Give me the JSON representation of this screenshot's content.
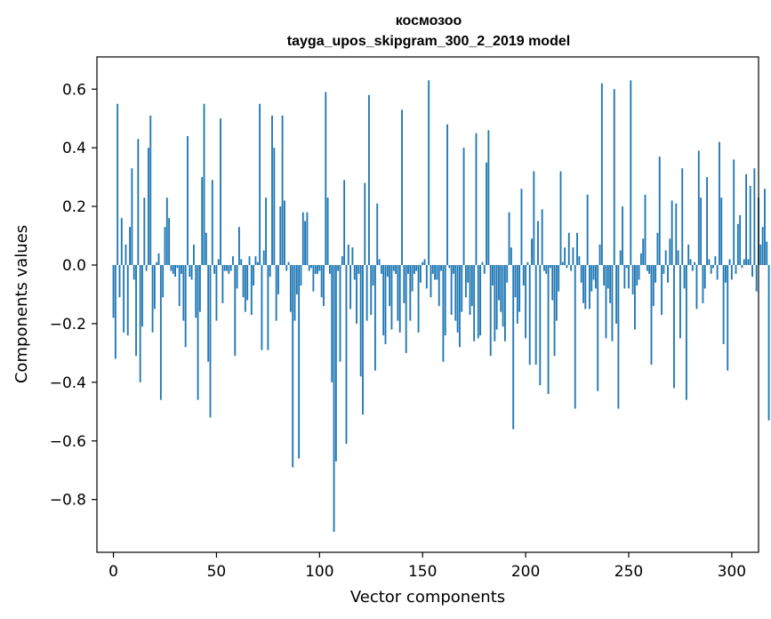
{
  "chart_data": {
    "type": "bar",
    "title": "космозоо",
    "subtitle": "tayga_upos_skipgram_300_2_2019 model",
    "xlabel": "Vector components",
    "ylabel": "Components values",
    "xlim": [
      -8,
      313
    ],
    "ylim": [
      -0.98,
      0.71
    ],
    "xticks": [
      0,
      50,
      100,
      150,
      200,
      250,
      300
    ],
    "xtick_labels": [
      "0",
      "50",
      "100",
      "150",
      "200",
      "250",
      "300"
    ],
    "yticks": [
      -0.8,
      -0.6,
      -0.4,
      -0.2,
      0.0,
      0.2,
      0.4,
      0.6
    ],
    "ytick_labels": [
      "−0.8",
      "−0.6",
      "−0.4",
      "−0.2",
      "0.0",
      "0.2",
      "0.4",
      "0.6"
    ],
    "bar_color": "#1f77b4",
    "values": [
      -0.18,
      -0.32,
      0.55,
      -0.11,
      0.16,
      -0.23,
      0.07,
      -0.24,
      0.13,
      0.33,
      -0.05,
      -0.31,
      0.43,
      -0.4,
      -0.21,
      0.23,
      -0.02,
      0.4,
      0.51,
      -0.23,
      -0.15,
      0.01,
      0.04,
      -0.46,
      -0.11,
      0.13,
      0.23,
      0.16,
      -0.02,
      -0.03,
      -0.04,
      -0.01,
      -0.14,
      -0.03,
      -0.19,
      -0.28,
      0.44,
      -0.04,
      -0.05,
      0.07,
      -0.18,
      -0.46,
      -0.16,
      0.3,
      0.55,
      0.11,
      -0.33,
      -0.52,
      0.29,
      -0.03,
      -0.19,
      0.02,
      0.5,
      -0.13,
      -0.02,
      -0.02,
      -0.03,
      -0.02,
      0.03,
      -0.31,
      -0.08,
      0.13,
      0.02,
      -0.11,
      -0.16,
      -0.12,
      0.03,
      -0.17,
      -0.07,
      0.03,
      0.01,
      0.55,
      -0.29,
      0.05,
      0.23,
      -0.29,
      -0.04,
      0.51,
      0.4,
      -0.19,
      -0.1,
      0.2,
      0.51,
      0.22,
      -0.02,
      0.01,
      -0.16,
      -0.69,
      -0.19,
      -0.1,
      -0.66,
      -0.07,
      0.18,
      0.15,
      0.18,
      -0.02,
      -0.01,
      -0.09,
      -0.03,
      -0.03,
      -0.02,
      -0.11,
      -0.14,
      0.59,
      0.23,
      -0.03,
      -0.4,
      -0.91,
      -0.67,
      -0.02,
      -0.33,
      0.03,
      0.29,
      -0.61,
      0.07,
      -0.15,
      0.06,
      -0.05,
      -0.2,
      -0.03,
      -0.38,
      -0.51,
      0.28,
      -0.19,
      0.58,
      -0.17,
      -0.07,
      -0.36,
      0.21,
      0.02,
      -0.03,
      -0.24,
      -0.27,
      -0.04,
      -0.14,
      -0.22,
      -0.02,
      -0.03,
      -0.19,
      -0.23,
      0.53,
      -0.13,
      -0.3,
      -0.03,
      -0.19,
      -0.09,
      -0.03,
      -0.02,
      -0.23,
      -0.06,
      0.01,
      0.02,
      -0.08,
      0.63,
      -0.11,
      -0.03,
      -0.05,
      -0.05,
      -0.14,
      -0.02,
      -0.33,
      -0.24,
      0.48,
      -0.01,
      -0.17,
      -0.03,
      -0.19,
      -0.23,
      -0.28,
      -0.16,
      0.4,
      -0.11,
      -0.06,
      -0.17,
      -0.14,
      -0.26,
      0.45,
      -0.25,
      -0.24,
      0.01,
      -0.03,
      0.35,
      0.46,
      -0.31,
      -0.07,
      -0.26,
      -0.22,
      -0.12,
      -0.16,
      -0.21,
      -0.26,
      -0.06,
      0.18,
      0.06,
      -0.56,
      -0.11,
      -0.2,
      -0.16,
      0.26,
      -0.07,
      -0.25,
      0.01,
      -0.34,
      0.09,
      0.32,
      -0.34,
      0.15,
      -0.41,
      0.19,
      -0.02,
      -0.03,
      -0.44,
      -0.01,
      -0.12,
      -0.31,
      -0.19,
      -0.09,
      0.32,
      0.01,
      0.06,
      -0.01,
      0.11,
      -0.02,
      0.06,
      -0.49,
      0.11,
      0.03,
      -0.06,
      -0.13,
      -0.15,
      0.24,
      -0.15,
      -0.09,
      -0.05,
      -0.08,
      -0.43,
      0.07,
      0.62,
      -0.07,
      -0.25,
      -0.08,
      -0.13,
      -0.26,
      0.6,
      -0.2,
      -0.49,
      0.05,
      0.2,
      -0.08,
      -0.01,
      -0.08,
      0.63,
      -0.1,
      -0.22,
      -0.07,
      -0.05,
      0.04,
      0.09,
      0.24,
      -0.02,
      -0.03,
      -0.34,
      -0.14,
      -0.06,
      0.11,
      0.37,
      -0.17,
      -0.03,
      0.05,
      -0.06,
      0.09,
      0.22,
      -0.42,
      0.21,
      0.05,
      -0.25,
      0.33,
      -0.08,
      -0.46,
      0.07,
      0.02,
      -0.02,
      0.01,
      -0.15,
      0.39,
      0.23,
      -0.13,
      -0.08,
      0.3,
      0.02,
      -0.03,
      -0.01,
      0.03,
      -0.05,
      0.42,
      0.23,
      -0.27,
      -0.06,
      -0.36,
      0.02,
      -0.05,
      0.36,
      -0.03,
      0.14,
      0.17,
      -0.01,
      0.02,
      0.31,
      0.02,
      0.27,
      -0.04,
      0.33,
      -0.09,
      0.23,
      0.07,
      0.13,
      0.26,
      0.08,
      -0.53
    ]
  }
}
